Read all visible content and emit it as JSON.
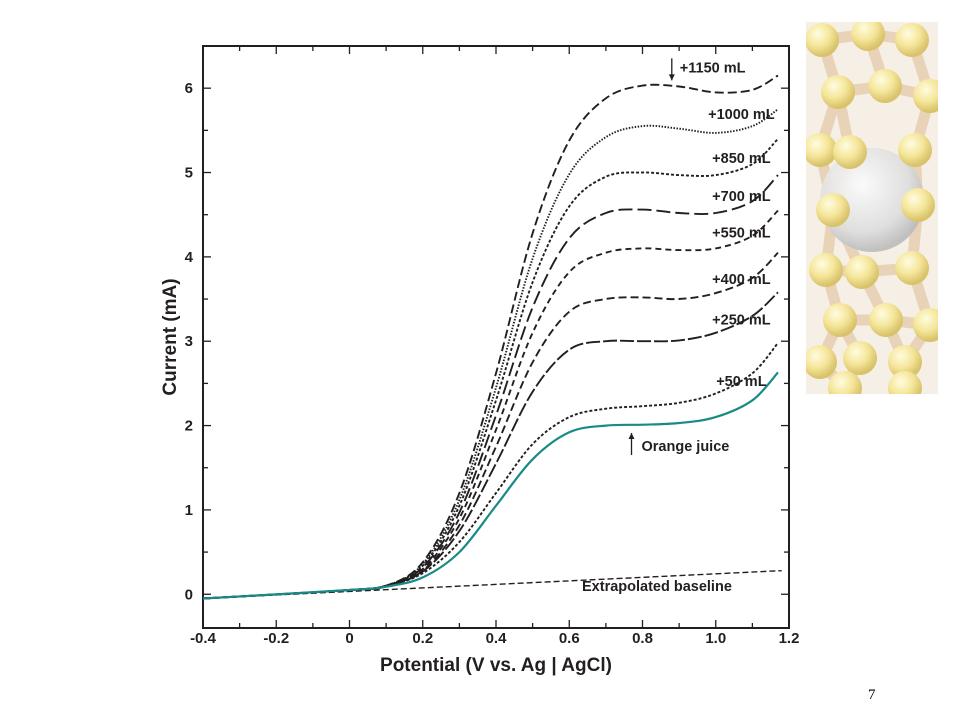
{
  "slide": {
    "number": "7"
  },
  "decoration": {
    "image": "molecular-lattice-illustration"
  },
  "chart_data": {
    "type": "line",
    "title": "",
    "xlabel": "Potential (V vs. Ag | AgCl)",
    "ylabel": "Current (mA)",
    "xlim": [
      -0.4,
      1.2
    ],
    "ylim": [
      -0.4,
      6.5
    ],
    "x_ticks": [
      -0.4,
      -0.2,
      0,
      0.2,
      0.4,
      0.6,
      0.8,
      1.0,
      1.2
    ],
    "x_tick_labels": [
      "-0.4",
      "-0.2",
      "0",
      "0.2",
      "0.4",
      "0.6",
      "0.8",
      "1.0",
      "1.2"
    ],
    "y_ticks": [
      0,
      1,
      2,
      3,
      4,
      5,
      6
    ],
    "y_tick_labels": [
      "0",
      "1",
      "2",
      "3",
      "4",
      "5",
      "6"
    ],
    "grid": false,
    "baseline": {
      "label": "Extrapolated baseline",
      "x": [
        -0.4,
        1.18
      ],
      "y": [
        -0.05,
        0.28
      ]
    },
    "series": [
      {
        "name": "Orange juice",
        "color": "#1a8a86",
        "dash": "solid",
        "x": [
          -0.4,
          0.0,
          0.1,
          0.2,
          0.3,
          0.4,
          0.5,
          0.6,
          0.7,
          0.8,
          0.9,
          1.0,
          1.1,
          1.17
        ],
        "y": [
          -0.05,
          0.05,
          0.09,
          0.2,
          0.5,
          1.05,
          1.6,
          1.92,
          2.0,
          2.01,
          2.03,
          2.1,
          2.3,
          2.63
        ]
      },
      {
        "name": "+50 mL",
        "color": "#231f20",
        "dash": "3,2",
        "x": [
          -0.4,
          0.0,
          0.1,
          0.2,
          0.3,
          0.4,
          0.5,
          0.6,
          0.7,
          0.8,
          0.9,
          1.0,
          1.1,
          1.17
        ],
        "y": [
          -0.05,
          0.05,
          0.1,
          0.25,
          0.62,
          1.2,
          1.78,
          2.1,
          2.2,
          2.23,
          2.27,
          2.38,
          2.62,
          2.98
        ]
      },
      {
        "name": "+250 mL",
        "color": "#231f20",
        "dash": "14,3",
        "x": [
          -0.4,
          0.0,
          0.1,
          0.2,
          0.3,
          0.4,
          0.5,
          0.6,
          0.7,
          0.8,
          0.9,
          1.0,
          1.1,
          1.17
        ],
        "y": [
          -0.05,
          0.05,
          0.1,
          0.27,
          0.75,
          1.55,
          2.4,
          2.9,
          3.0,
          3.0,
          3.01,
          3.1,
          3.3,
          3.58
        ]
      },
      {
        "name": "+400 mL",
        "color": "#231f20",
        "dash": "8,4",
        "x": [
          -0.4,
          0.0,
          0.1,
          0.2,
          0.3,
          0.4,
          0.5,
          0.6,
          0.7,
          0.8,
          0.9,
          1.0,
          1.1,
          1.17
        ],
        "y": [
          -0.05,
          0.05,
          0.1,
          0.28,
          0.82,
          1.75,
          2.75,
          3.35,
          3.5,
          3.52,
          3.5,
          3.57,
          3.75,
          4.05
        ]
      },
      {
        "name": "+550 mL",
        "color": "#231f20",
        "dash": "6,4",
        "x": [
          -0.4,
          0.0,
          0.1,
          0.2,
          0.3,
          0.4,
          0.5,
          0.6,
          0.7,
          0.8,
          0.9,
          1.0,
          1.1,
          1.17
        ],
        "y": [
          -0.05,
          0.05,
          0.1,
          0.3,
          0.9,
          1.95,
          3.1,
          3.82,
          4.05,
          4.1,
          4.08,
          4.1,
          4.25,
          4.55
        ]
      },
      {
        "name": "+700 mL",
        "color": "#231f20",
        "dash": "14,5",
        "x": [
          -0.4,
          0.0,
          0.1,
          0.2,
          0.3,
          0.4,
          0.5,
          0.6,
          0.7,
          0.8,
          0.9,
          1.0,
          1.1,
          1.17
        ],
        "y": [
          -0.05,
          0.05,
          0.1,
          0.32,
          0.97,
          2.12,
          3.4,
          4.22,
          4.52,
          4.56,
          4.52,
          4.52,
          4.66,
          4.97
        ]
      },
      {
        "name": "+850 mL",
        "color": "#231f20",
        "dash": "3,2",
        "x": [
          -0.4,
          0.0,
          0.1,
          0.2,
          0.3,
          0.4,
          0.5,
          0.6,
          0.7,
          0.8,
          0.9,
          1.0,
          1.1,
          1.17
        ],
        "y": [
          -0.05,
          0.05,
          0.1,
          0.34,
          1.05,
          2.3,
          3.7,
          4.6,
          4.95,
          5.0,
          4.97,
          4.97,
          5.1,
          5.4
        ]
      },
      {
        "name": "+1000 mL",
        "color": "#231f20",
        "dash": "1.5,1.5",
        "x": [
          -0.4,
          0.0,
          0.1,
          0.2,
          0.3,
          0.4,
          0.5,
          0.6,
          0.7,
          0.8,
          0.9,
          1.0,
          1.1,
          1.17
        ],
        "y": [
          -0.05,
          0.05,
          0.1,
          0.36,
          1.12,
          2.45,
          3.98,
          4.98,
          5.42,
          5.55,
          5.52,
          5.47,
          5.55,
          5.75
        ]
      },
      {
        "name": "+1150 mL",
        "color": "#231f20",
        "dash": "9,4",
        "x": [
          -0.4,
          0.0,
          0.1,
          0.2,
          0.3,
          0.4,
          0.5,
          0.6,
          0.7,
          0.8,
          0.9,
          1.0,
          1.1,
          1.17
        ],
        "y": [
          -0.05,
          0.05,
          0.1,
          0.38,
          1.2,
          2.62,
          4.28,
          5.38,
          5.88,
          6.03,
          6.02,
          5.95,
          5.98,
          6.15
        ]
      }
    ],
    "annotations": [
      {
        "text": "+1150 mL",
        "series": "+1150 mL",
        "arrow": "down",
        "arrow_x": 0.88
      },
      {
        "text": "+1000 mL",
        "series": "+1000 mL"
      },
      {
        "text": "+850 mL",
        "series": "+850 mL"
      },
      {
        "text": "+700 mL",
        "series": "+700 mL"
      },
      {
        "text": "+550 mL",
        "series": "+550 mL"
      },
      {
        "text": "+400 mL",
        "series": "+400 mL"
      },
      {
        "text": "+250 mL",
        "series": "+250 mL"
      },
      {
        "text": "+50 mL",
        "series": "+50 mL"
      },
      {
        "text": "Orange juice",
        "series": "Orange juice",
        "arrow": "up",
        "arrow_x": 0.77
      }
    ]
  }
}
